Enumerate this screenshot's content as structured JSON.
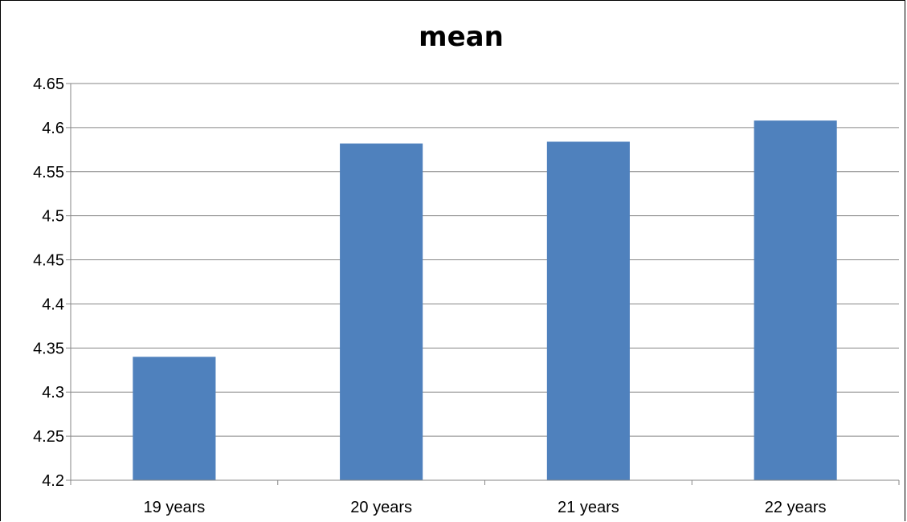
{
  "chart_data": {
    "type": "bar",
    "title": "mean",
    "xlabel": "",
    "ylabel": "",
    "categories": [
      "19 years",
      "20 years",
      "21 years",
      "22 years"
    ],
    "values": [
      4.34,
      4.582,
      4.584,
      4.608
    ],
    "ylim": [
      4.2,
      4.65
    ],
    "yticks": [
      "4.2",
      "4.25",
      "4.3",
      "4.35",
      "4.4",
      "4.45",
      "4.5",
      "4.55",
      "4.6",
      "4.65"
    ],
    "grid": true,
    "legend": "none",
    "colors": {
      "bar": "#4F81BD",
      "grid": "#868686",
      "axis": "#868686"
    }
  }
}
